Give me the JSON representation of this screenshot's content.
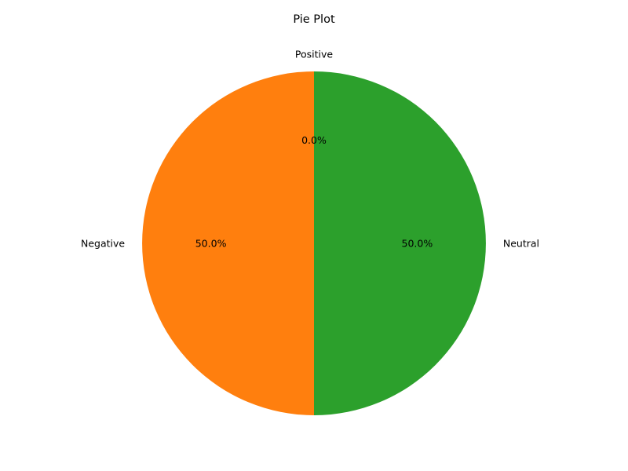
{
  "chart_data": {
    "type": "pie",
    "title": "Pie Plot",
    "start_angle_deg": 90,
    "direction": "counterclockwise",
    "slices": [
      {
        "label": "Positive",
        "value": 0,
        "percent_label": "0.0%",
        "color": "#1f77b4"
      },
      {
        "label": "Negative",
        "value": 50,
        "percent_label": "50.0%",
        "color": "#ff7f0e"
      },
      {
        "label": "Neutral",
        "value": 50,
        "percent_label": "50.0%",
        "color": "#2ca02c"
      }
    ]
  }
}
